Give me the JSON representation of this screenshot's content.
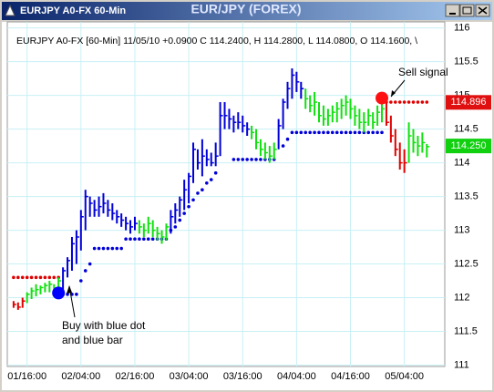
{
  "window_title": "EURJPY A0-FX 60-Min",
  "chart_data": {
    "type": "ohlc",
    "title": "EUR/JPY (FOREX)",
    "subtitle": "EURJPY A0-FX [60-Min] 11/05/10  +0.0900 C 114.2400, H 114.2800, L 114.0800, O 114.1600, \\",
    "xlim": [
      -1.4,
      96
    ],
    "xticks": [
      {
        "value": 3,
        "label": "01/16:00"
      },
      {
        "value": 15,
        "label": "02/04:00"
      },
      {
        "value": 27,
        "label": "02/16:00"
      },
      {
        "value": 39,
        "label": "03/04:00"
      },
      {
        "value": 51,
        "label": "03/16:00"
      },
      {
        "value": 63,
        "label": "04/04:00"
      },
      {
        "value": 75,
        "label": "04/16:00"
      },
      {
        "value": 87,
        "label": "05/04:00"
      }
    ],
    "ylim": [
      110.98,
      116.09
    ],
    "yticks": [
      111,
      111.5,
      112,
      112.5,
      113,
      113.5,
      114,
      114.5,
      115,
      115.5,
      116
    ],
    "grid": true,
    "palette": {
      "red": "#e00000",
      "green": "#10e010",
      "blue": "#0000d8"
    },
    "high": [
      111.95,
      111.93,
      112.0,
      112.08,
      112.15,
      112.2,
      112.18,
      112.22,
      112.25,
      112.2,
      112.3,
      112.45,
      112.6,
      112.9,
      113.0,
      113.3,
      113.6,
      113.5,
      113.45,
      113.5,
      113.55,
      113.45,
      113.4,
      113.3,
      113.25,
      113.2,
      113.15,
      113.2,
      113.15,
      113.1,
      113.2,
      113.15,
      113.05,
      113.0,
      113.1,
      113.3,
      113.4,
      113.5,
      113.75,
      113.85,
      114.3,
      114.2,
      114.35,
      114.2,
      114.15,
      114.3,
      114.9,
      114.9,
      114.8,
      114.7,
      114.75,
      114.7,
      114.6,
      114.55,
      114.5,
      114.35,
      114.3,
      114.25,
      114.3,
      114.65,
      114.95,
      115.2,
      115.4,
      115.35,
      115.2,
      115.1,
      115.0,
      115.05,
      114.9,
      114.85,
      114.8,
      114.85,
      114.9,
      114.95,
      115.0,
      114.95,
      114.85,
      114.8,
      114.75,
      114.8,
      114.75,
      114.85,
      114.9,
      114.9,
      114.7,
      114.5,
      114.3,
      114.2,
      114.6,
      114.5,
      114.4,
      114.45,
      114.28
    ],
    "low": [
      111.85,
      111.82,
      111.85,
      111.92,
      111.98,
      112.02,
      112.05,
      112.08,
      112.08,
      112.05,
      112.05,
      112.1,
      112.3,
      112.4,
      112.5,
      112.7,
      113.0,
      113.2,
      113.2,
      113.2,
      113.25,
      113.2,
      113.15,
      113.1,
      113.05,
      113.0,
      112.95,
      113.0,
      112.95,
      112.9,
      112.95,
      112.9,
      112.85,
      112.8,
      112.85,
      112.95,
      113.1,
      113.2,
      113.3,
      113.4,
      113.7,
      113.9,
      113.8,
      113.95,
      113.95,
      113.95,
      114.1,
      114.5,
      114.5,
      114.45,
      114.5,
      114.45,
      114.4,
      114.35,
      114.2,
      114.1,
      114.05,
      114.0,
      114.05,
      114.2,
      114.5,
      114.8,
      114.95,
      115.05,
      114.95,
      114.8,
      114.75,
      114.7,
      114.6,
      114.55,
      114.55,
      114.6,
      114.6,
      114.65,
      114.7,
      114.65,
      114.55,
      114.5,
      114.45,
      114.55,
      114.5,
      114.55,
      114.6,
      114.55,
      114.3,
      114.1,
      113.9,
      113.85,
      114.0,
      114.15,
      114.1,
      114.15,
      114.08
    ],
    "close": [
      111.9,
      111.86,
      111.95,
      112.05,
      112.1,
      112.12,
      112.15,
      112.18,
      112.2,
      112.12,
      112.25,
      112.4,
      112.55,
      112.8,
      112.9,
      113.2,
      113.5,
      113.4,
      113.3,
      113.35,
      113.4,
      113.3,
      113.25,
      113.2,
      113.15,
      113.1,
      113.05,
      113.1,
      113.05,
      113.0,
      113.1,
      113.0,
      112.95,
      112.9,
      113.05,
      113.2,
      113.3,
      113.45,
      113.6,
      113.8,
      114.2,
      114.0,
      114.1,
      114.05,
      114.0,
      114.1,
      114.7,
      114.7,
      114.65,
      114.6,
      114.6,
      114.55,
      114.5,
      114.45,
      114.3,
      114.2,
      114.15,
      114.1,
      114.2,
      114.55,
      114.9,
      115.1,
      115.3,
      115.2,
      115.1,
      114.95,
      114.85,
      114.9,
      114.7,
      114.65,
      114.7,
      114.75,
      114.8,
      114.85,
      114.9,
      114.8,
      114.7,
      114.6,
      114.6,
      114.7,
      114.6,
      114.75,
      114.8,
      114.6,
      114.4,
      114.2,
      114.0,
      114.0,
      114.4,
      114.3,
      114.25,
      114.3,
      114.24
    ],
    "bar_color": [
      "red",
      "red",
      "red",
      "green",
      "green",
      "green",
      "green",
      "green",
      "green",
      "green",
      "green",
      "blue",
      "blue",
      "blue",
      "blue",
      "blue",
      "blue",
      "blue",
      "blue",
      "blue",
      "blue",
      "blue",
      "blue",
      "blue",
      "blue",
      "blue",
      "blue",
      "blue",
      "green",
      "green",
      "green",
      "green",
      "green",
      "green",
      "green",
      "blue",
      "blue",
      "blue",
      "blue",
      "blue",
      "blue",
      "blue",
      "blue",
      "blue",
      "blue",
      "blue",
      "blue",
      "blue",
      "blue",
      "blue",
      "blue",
      "blue",
      "blue",
      "green",
      "green",
      "green",
      "green",
      "green",
      "green",
      "blue",
      "blue",
      "blue",
      "blue",
      "blue",
      "blue",
      "green",
      "green",
      "green",
      "green",
      "green",
      "green",
      "green",
      "green",
      "green",
      "green",
      "green",
      "green",
      "green",
      "green",
      "green",
      "green",
      "green",
      "green",
      "red",
      "red",
      "red",
      "red",
      "red",
      "green",
      "green",
      "green",
      "green",
      "green"
    ],
    "blue_dots": [
      null,
      null,
      null,
      null,
      null,
      null,
      null,
      null,
      null,
      null,
      null,
      112.05,
      112.05,
      112.05,
      112.05,
      112.25,
      112.4,
      112.5,
      112.73,
      112.73,
      112.73,
      112.73,
      112.73,
      112.73,
      112.73,
      112.87,
      112.87,
      112.87,
      112.87,
      112.87,
      112.87,
      112.87,
      112.87,
      112.87,
      112.87,
      113.0,
      113.05,
      113.15,
      113.25,
      113.35,
      113.45,
      113.55,
      113.6,
      113.7,
      113.75,
      113.85,
      null,
      null,
      null,
      114.05,
      114.05,
      114.05,
      114.05,
      114.05,
      114.05,
      114.05,
      114.05,
      114.05,
      114.05,
      null,
      114.25,
      114.35,
      114.45,
      114.45,
      114.45,
      114.45,
      114.45,
      114.45,
      114.45,
      114.45,
      114.45,
      114.45,
      114.45,
      114.45,
      114.45,
      114.45,
      114.45,
      114.45,
      114.45,
      114.45,
      114.45,
      114.45,
      114.45,
      null,
      null,
      null,
      null,
      null,
      null,
      null,
      null,
      null,
      null
    ],
    "red_dots": [
      112.3,
      112.3,
      112.3,
      112.3,
      112.3,
      112.3,
      112.3,
      112.3,
      112.3,
      112.3,
      112.3,
      null,
      null,
      null,
      null,
      null,
      null,
      null,
      null,
      null,
      null,
      null,
      null,
      null,
      null,
      null,
      null,
      null,
      null,
      null,
      null,
      null,
      null,
      null,
      null,
      null,
      null,
      null,
      null,
      null,
      null,
      null,
      null,
      null,
      null,
      null,
      null,
      null,
      null,
      null,
      null,
      null,
      null,
      null,
      null,
      null,
      null,
      null,
      null,
      null,
      null,
      null,
      null,
      null,
      null,
      null,
      null,
      null,
      null,
      null,
      null,
      null,
      null,
      null,
      null,
      null,
      null,
      null,
      null,
      null,
      null,
      null,
      null,
      114.9,
      114.9,
      114.9,
      114.9,
      114.9,
      114.9,
      114.9,
      114.9,
      114.9,
      114.9
    ],
    "signals": [
      {
        "index": 10,
        "value": 112.07,
        "color": "#0000ff"
      },
      {
        "index": 82,
        "value": 114.96,
        "color": "#ff1010"
      }
    ],
    "price_markers": [
      {
        "value": 114.896,
        "label": "114.896",
        "color": "#e01010"
      },
      {
        "value": 114.25,
        "label": "114.250",
        "color": "#10d010"
      }
    ],
    "annotations": [
      "Sell signal",
      "Buy with blue dot",
      "and blue bar"
    ]
  }
}
